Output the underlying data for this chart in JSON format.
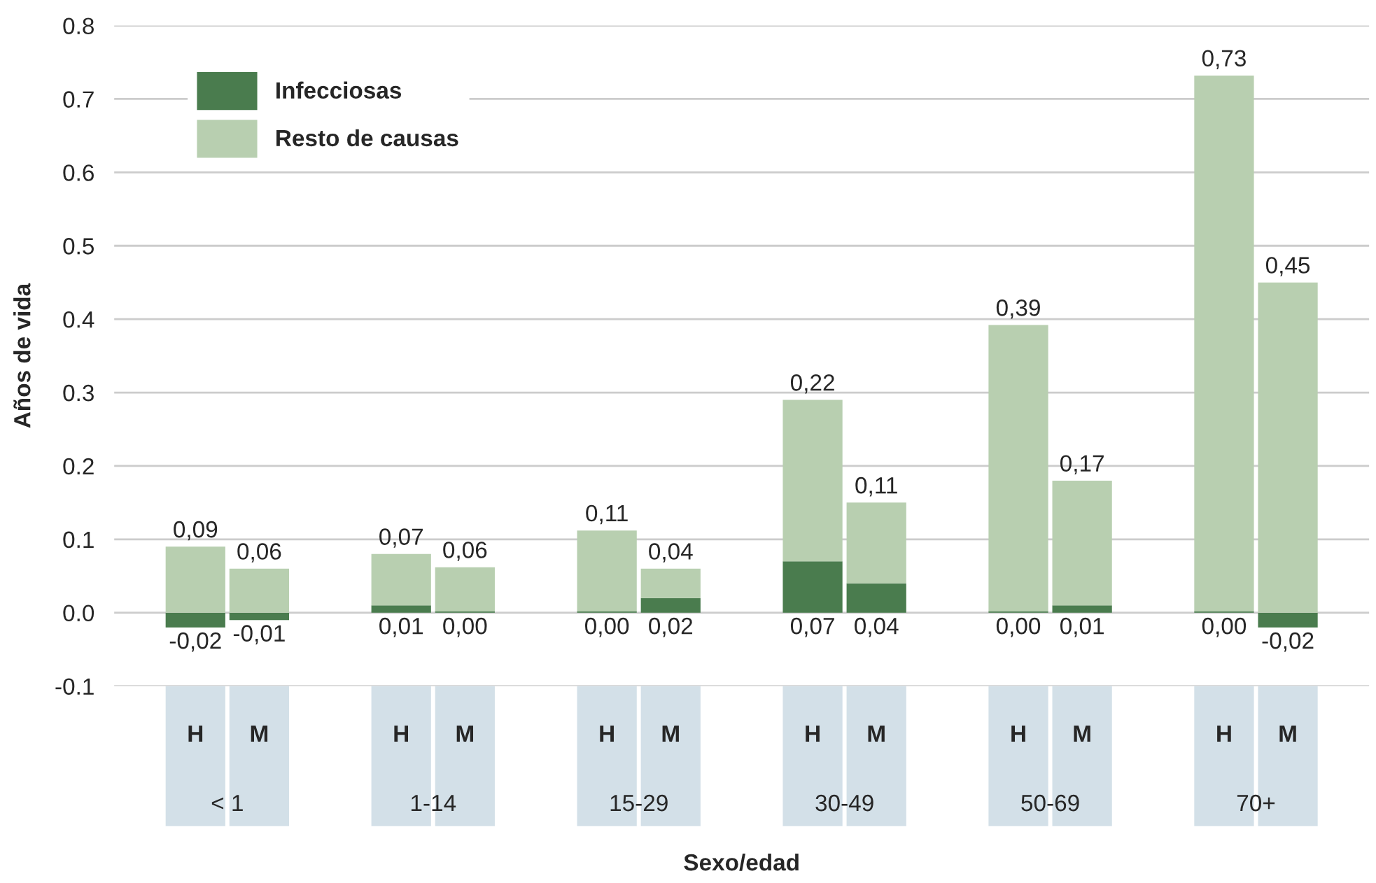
{
  "chart_data": {
    "type": "bar",
    "stacked": true,
    "xlabel": "Sexo/edad",
    "ylabel": "Años de vida",
    "categories": [
      "H",
      "M",
      "H",
      "M",
      "H",
      "M",
      "H",
      "M",
      "H",
      "M",
      "H",
      "M"
    ],
    "annotations": [
      "< 1",
      "1-14",
      "15-29",
      "30-49",
      "50-69",
      "70+"
    ],
    "series": [
      {
        "name": "Infecciosas",
        "color": "#4a7c4e",
        "values": [
          -0.02,
          -0.01,
          0.01,
          0.002,
          0.002,
          0.02,
          0.07,
          0.04,
          0.002,
          0.01,
          0.002,
          -0.02
        ],
        "value_labels": [
          "-0,02",
          "-0,01",
          "0,01",
          "0,00",
          "0,00",
          "0,02",
          "0,07",
          "0,04",
          "0,00",
          "0,01",
          "0,00",
          "-0,02"
        ]
      },
      {
        "name": "Resto de causas",
        "color": "#b8cfb0",
        "values": [
          0.09,
          0.06,
          0.07,
          0.06,
          0.11,
          0.04,
          0.22,
          0.11,
          0.39,
          0.17,
          0.73,
          0.45
        ],
        "value_labels": [
          "0,09",
          "0,06",
          "0,07",
          "0,06",
          "0,11",
          "0,04",
          "0,22",
          "0,11",
          "0,39",
          "0,17",
          "0,73",
          "0,45"
        ]
      }
    ],
    "ylim": [
      -0.1,
      0.8
    ],
    "yticks": [
      {
        "value": -0.1,
        "label": "-0.1"
      },
      {
        "value": 0,
        "label": "0.0"
      },
      {
        "value": 0.1,
        "label": "0.1"
      },
      {
        "value": 0.2,
        "label": "0.2"
      },
      {
        "value": 0.3,
        "label": "0.3"
      },
      {
        "value": 0.4,
        "label": "0.4"
      },
      {
        "value": 0.5,
        "label": "0.5"
      },
      {
        "value": 0.6,
        "label": "0.6"
      },
      {
        "value": 0.7,
        "label": "0.7"
      },
      {
        "value": 0.8,
        "label": "0.8"
      }
    ],
    "grid": "y",
    "legend": "top left"
  }
}
